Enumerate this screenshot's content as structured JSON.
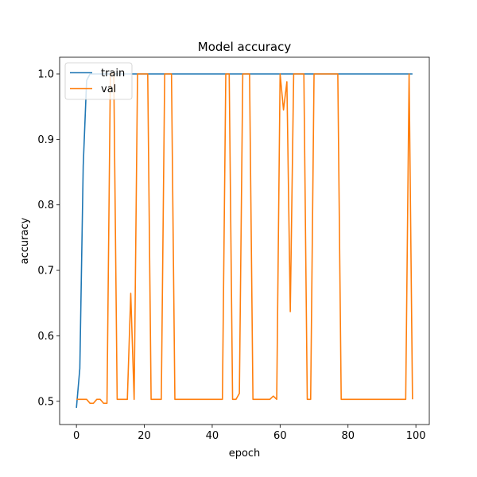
{
  "chart_data": {
    "type": "line",
    "title": "Model accuracy",
    "xlabel": "epoch",
    "ylabel": "accuracy",
    "xlim": [
      -4.95,
      103.95
    ],
    "ylim": [
      0.4645,
      1.0255
    ],
    "xticks": [
      0,
      20,
      40,
      60,
      80,
      100
    ],
    "yticks": [
      0.5,
      0.6,
      0.7,
      0.8,
      0.9,
      1.0
    ],
    "xtick_labels": [
      "0",
      "20",
      "40",
      "60",
      "80",
      "100"
    ],
    "ytick_labels": [
      "0.5",
      "0.6",
      "0.7",
      "0.8",
      "0.9",
      "1.0"
    ],
    "grid": false,
    "legend_position": "upper-left",
    "legend_labels": [
      "train",
      "val"
    ],
    "series": [
      {
        "name": "train",
        "color": "#1f77b4",
        "x": [
          0,
          1,
          2,
          3,
          4,
          5,
          6,
          7,
          8,
          9,
          10,
          11,
          12,
          13,
          14,
          15,
          16,
          17,
          18,
          19,
          20,
          21,
          22,
          23,
          24,
          25,
          26,
          27,
          28,
          29,
          30,
          31,
          32,
          33,
          34,
          35,
          36,
          37,
          38,
          39,
          40,
          41,
          42,
          43,
          44,
          45,
          46,
          47,
          48,
          49,
          50,
          51,
          52,
          53,
          54,
          55,
          56,
          57,
          58,
          59,
          60,
          61,
          62,
          63,
          64,
          65,
          66,
          67,
          68,
          69,
          70,
          71,
          72,
          73,
          74,
          75,
          76,
          77,
          78,
          79,
          80,
          81,
          82,
          83,
          84,
          85,
          86,
          87,
          88,
          89,
          90,
          91,
          92,
          93,
          94,
          95,
          96,
          97,
          98,
          99
        ],
        "values": [
          0.49,
          0.55,
          0.86,
          0.99,
          1,
          1,
          1,
          1,
          1,
          1,
          1,
          1,
          1,
          1,
          1,
          1,
          1,
          1,
          1,
          1,
          1,
          1,
          1,
          1,
          1,
          1,
          1,
          1,
          1,
          1,
          1,
          1,
          1,
          1,
          1,
          1,
          1,
          1,
          1,
          1,
          1,
          1,
          1,
          1,
          1,
          1,
          1,
          1,
          1,
          1,
          1,
          1,
          1,
          1,
          1,
          1,
          1,
          1,
          1,
          1,
          1,
          1,
          1,
          1,
          1,
          1,
          1,
          1,
          1,
          1,
          1,
          1,
          1,
          1,
          1,
          1,
          1,
          1,
          1,
          1,
          1,
          1,
          1,
          1,
          1,
          1,
          1,
          1,
          1,
          1,
          1,
          1,
          1,
          1,
          1,
          1,
          1,
          1,
          1,
          1
        ]
      },
      {
        "name": "val",
        "color": "#ff7f0e",
        "x": [
          0,
          1,
          2,
          3,
          4,
          5,
          6,
          7,
          8,
          9,
          10,
          11,
          12,
          13,
          14,
          15,
          16,
          17,
          18,
          19,
          20,
          21,
          22,
          23,
          24,
          25,
          26,
          27,
          28,
          29,
          30,
          31,
          32,
          33,
          34,
          35,
          36,
          37,
          38,
          39,
          40,
          41,
          42,
          43,
          44,
          45,
          46,
          47,
          48,
          49,
          50,
          51,
          52,
          53,
          54,
          55,
          56,
          57,
          58,
          59,
          60,
          61,
          62,
          63,
          64,
          65,
          66,
          67,
          68,
          69,
          70,
          71,
          72,
          73,
          74,
          75,
          76,
          77,
          78,
          79,
          80,
          81,
          82,
          83,
          84,
          85,
          86,
          87,
          88,
          89,
          90,
          91,
          92,
          93,
          94,
          95,
          96,
          97,
          98,
          99
        ],
        "values": [
          0.503,
          0.503,
          0.503,
          0.503,
          0.497,
          0.497,
          0.503,
          0.503,
          0.497,
          0.497,
          1,
          1,
          0.503,
          0.503,
          0.503,
          0.503,
          0.665,
          0.503,
          1,
          1,
          1,
          1,
          0.503,
          0.503,
          0.503,
          0.503,
          1,
          1,
          1,
          0.503,
          0.503,
          0.503,
          0.503,
          0.503,
          0.503,
          0.503,
          0.503,
          0.503,
          0.503,
          0.503,
          0.503,
          0.503,
          0.503,
          0.503,
          1,
          1,
          0.503,
          0.503,
          0.512,
          1,
          1,
          1,
          0.503,
          0.503,
          0.503,
          0.503,
          0.503,
          0.503,
          0.508,
          0.503,
          1,
          0.945,
          0.988,
          0.637,
          1,
          1,
          1,
          1,
          0.503,
          0.503,
          1,
          1,
          1,
          1,
          1,
          1,
          1,
          1,
          0.503,
          0.503,
          0.503,
          0.503,
          0.503,
          0.503,
          0.503,
          0.503,
          0.503,
          0.503,
          0.503,
          0.503,
          0.503,
          0.503,
          0.503,
          0.503,
          0.503,
          0.503,
          0.503,
          0.503,
          1,
          0.503
        ]
      }
    ]
  }
}
